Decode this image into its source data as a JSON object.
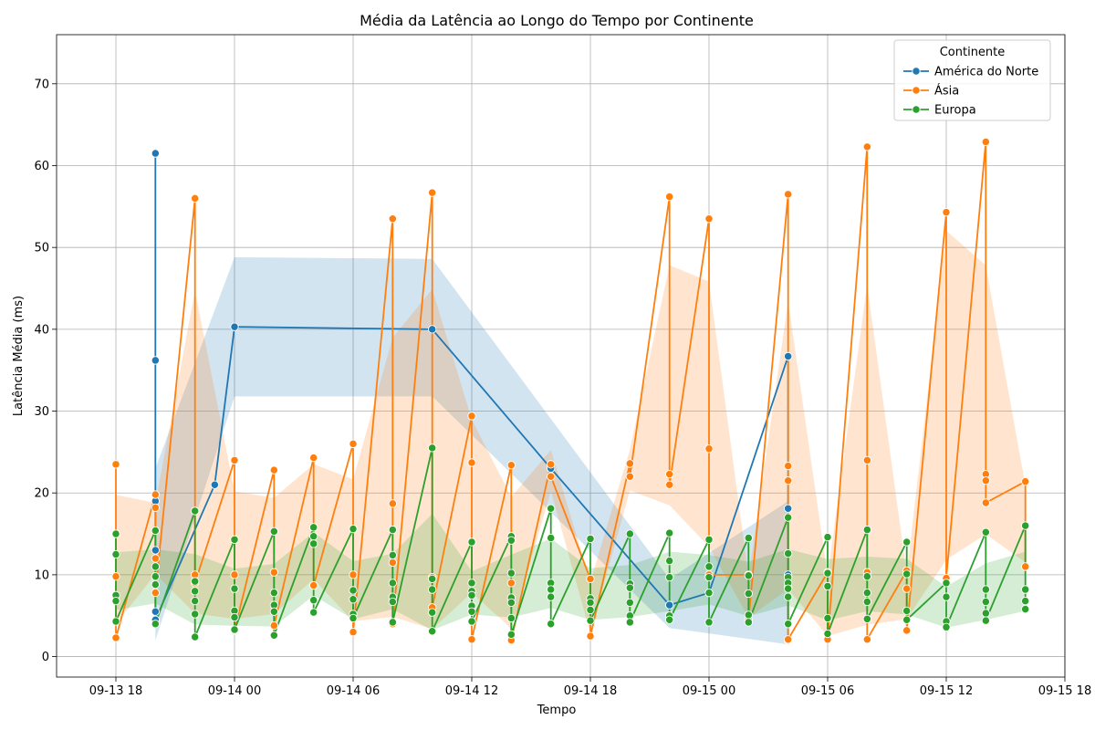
{
  "chart_data": {
    "type": "line",
    "title": "Média da Latência ao Longo do Tempo por Continente",
    "xlabel": "Tempo",
    "ylabel": "Latência Média (ms)",
    "x_ticks": [
      "09-13 18",
      "09-14 00",
      "09-14 06",
      "09-14 12",
      "09-14 18",
      "09-15 00",
      "09-15 06",
      "09-15 12",
      "09-15 18"
    ],
    "y_ticks": [
      0,
      10,
      20,
      30,
      40,
      50,
      60,
      70
    ],
    "xlim": [
      "09-13 15:00",
      "09-15 18:00"
    ],
    "ylim": [
      -2.5,
      76
    ],
    "grid": true,
    "legend": {
      "title": "Continente",
      "position": "top-right"
    },
    "series": [
      {
        "name": "América do Norte",
        "color": "#1f77b4",
        "points": [
          {
            "t": "09-13 20",
            "y": [
              61.5,
              36.2,
              19,
              13,
              5.5,
              4.5
            ]
          },
          {
            "t": "09-13 23",
            "y": [
              21
            ]
          },
          {
            "t": "09-14 00",
            "y": [
              40.3
            ]
          },
          {
            "t": "09-14 10",
            "y": [
              40
            ]
          },
          {
            "t": "09-14 16",
            "y": [
              23
            ]
          },
          {
            "t": "09-14 22",
            "y": [
              6.3
            ]
          },
          {
            "t": "09-15 00",
            "y": [
              7.8
            ]
          },
          {
            "t": "09-15 04",
            "y": [
              36.7,
              18.1,
              10,
              8.5,
              4,
              2
            ]
          }
        ],
        "band": [
          {
            "t": "09-13 20",
            "lo": 2,
            "hi": 23
          },
          {
            "t": "09-14 00",
            "lo": 31.8,
            "hi": 48.8
          },
          {
            "t": "09-14 10",
            "lo": 31.8,
            "hi": 48.6
          },
          {
            "t": "09-14 22",
            "lo": 3.5,
            "hi": 9.5
          },
          {
            "t": "09-15 04",
            "lo": 1.5,
            "hi": 19
          }
        ]
      },
      {
        "name": "Ásia",
        "color": "#ff7f0e",
        "points": [
          {
            "t": "09-13 18",
            "y": [
              23.5,
              9.8,
              2.3
            ]
          },
          {
            "t": "09-13 20",
            "y": [
              19.8,
              18.2,
              12,
              7.8
            ]
          },
          {
            "t": "09-13 22",
            "y": [
              56,
              10,
              9
            ]
          },
          {
            "t": "09-14 00",
            "y": [
              24,
              10,
              3.2
            ]
          },
          {
            "t": "09-14 02",
            "y": [
              22.8,
              10.3,
              3.8
            ]
          },
          {
            "t": "09-14 04",
            "y": [
              24.3,
              8.7
            ]
          },
          {
            "t": "09-14 06",
            "y": [
              26,
              10,
              3
            ]
          },
          {
            "t": "09-14 08",
            "y": [
              53.5,
              18.7,
              11.5,
              4
            ]
          },
          {
            "t": "09-14 10",
            "y": [
              56.7,
              9.7,
              6
            ]
          },
          {
            "t": "09-14 12",
            "y": [
              29.4,
              23.7,
              2.1
            ]
          },
          {
            "t": "09-14 14",
            "y": [
              23.4,
              9,
              2
            ]
          },
          {
            "t": "09-14 16",
            "y": [
              23.5,
              22
            ]
          },
          {
            "t": "09-14 18",
            "y": [
              9.5,
              2.5
            ]
          },
          {
            "t": "09-14 20",
            "y": [
              23.6,
              22
            ]
          },
          {
            "t": "09-14 22",
            "y": [
              56.2,
              22.3,
              21
            ]
          },
          {
            "t": "09-15 00",
            "y": [
              53.5,
              25.4,
              10
            ]
          },
          {
            "t": "09-15 02",
            "y": [
              10,
              4.5
            ]
          },
          {
            "t": "09-15 04",
            "y": [
              56.5,
              23.3,
              21.5,
              2.1
            ]
          },
          {
            "t": "09-15 06",
            "y": [
              10.3,
              2.1
            ]
          },
          {
            "t": "09-15 08",
            "y": [
              62.3,
              24,
              10.3,
              2.1
            ]
          },
          {
            "t": "09-15 10",
            "y": [
              10.5,
              8.3,
              3.2
            ]
          },
          {
            "t": "09-15 12",
            "y": [
              54.3,
              9.6
            ]
          },
          {
            "t": "09-15 14",
            "y": [
              62.9,
              22.3,
              21.5,
              18.8
            ]
          },
          {
            "t": "09-15 16",
            "y": [
              21.4,
              11
            ]
          }
        ]
      },
      {
        "name": "Europa",
        "color": "#2ca02c",
        "points": [
          {
            "t": "09-13 18",
            "y": [
              15,
              12.5,
              7.5,
              6.8,
              4.3
            ]
          },
          {
            "t": "09-13 20",
            "y": [
              15.4,
              11,
              9.8,
              8.8,
              4
            ]
          },
          {
            "t": "09-13 22",
            "y": [
              17.8,
              9.2,
              8,
              6.8,
              5.2,
              2.4
            ]
          },
          {
            "t": "09-14 00",
            "y": [
              14.3,
              8.3,
              5.6,
              4.8,
              3.3
            ]
          },
          {
            "t": "09-14 02",
            "y": [
              15.3,
              7.8,
              6.3,
              5.5,
              2.6
            ]
          },
          {
            "t": "09-14 04",
            "y": [
              15.8,
              14.7,
              13.8,
              6.9,
              5.4
            ]
          },
          {
            "t": "09-14 06",
            "y": [
              15.6,
              8.1,
              7,
              5.2,
              4.7
            ]
          },
          {
            "t": "09-14 08",
            "y": [
              15.5,
              12.4,
              9,
              7.3,
              6.7,
              4.2
            ]
          },
          {
            "t": "09-14 10",
            "y": [
              25.5,
              9.5,
              8.2,
              5.4,
              3.1
            ]
          },
          {
            "t": "09-14 12",
            "y": [
              14,
              9,
              8,
              7.5,
              6.2,
              5.5,
              4.3
            ]
          },
          {
            "t": "09-14 14",
            "y": [
              14.7,
              14.2,
              10.2,
              7.2,
              6.6,
              4.7,
              2.7
            ]
          },
          {
            "t": "09-14 16",
            "y": [
              18.1,
              14.5,
              9,
              8.2,
              7.3,
              4
            ]
          },
          {
            "t": "09-14 18",
            "y": [
              14.4,
              7.1,
              6.6,
              5.7,
              4.4
            ]
          },
          {
            "t": "09-14 20",
            "y": [
              15,
              8.9,
              8.4,
              6.6,
              5,
              4.2
            ]
          },
          {
            "t": "09-14 22",
            "y": [
              15.1,
              11.7,
              9.7,
              5,
              4.5
            ]
          },
          {
            "t": "09-15 00",
            "y": [
              14.3,
              11,
              9.7,
              7.8,
              4.2
            ]
          },
          {
            "t": "09-15 02",
            "y": [
              14.5,
              9.9,
              7.7,
              5.1,
              4.2
            ]
          },
          {
            "t": "09-15 04",
            "y": [
              17,
              12.6,
              9.7,
              9,
              8.3,
              7.3,
              4
            ]
          },
          {
            "t": "09-15 06",
            "y": [
              14.6,
              10.2,
              8.6,
              4.7,
              2.8
            ]
          },
          {
            "t": "09-15 08",
            "y": [
              15.5,
              9.8,
              7.8,
              6.7,
              4.6
            ]
          },
          {
            "t": "09-15 10",
            "y": [
              14,
              10.1,
              5.6,
              4.5
            ]
          },
          {
            "t": "09-15 12",
            "y": [
              9,
              7.3,
              4.3,
              3.6
            ]
          },
          {
            "t": "09-15 14",
            "y": [
              15.2,
              8.2,
              6.7,
              5.3,
              4.4
            ]
          },
          {
            "t": "09-15 16",
            "y": [
              16,
              8.2,
              6.8,
              5.8
            ]
          }
        ]
      }
    ]
  }
}
